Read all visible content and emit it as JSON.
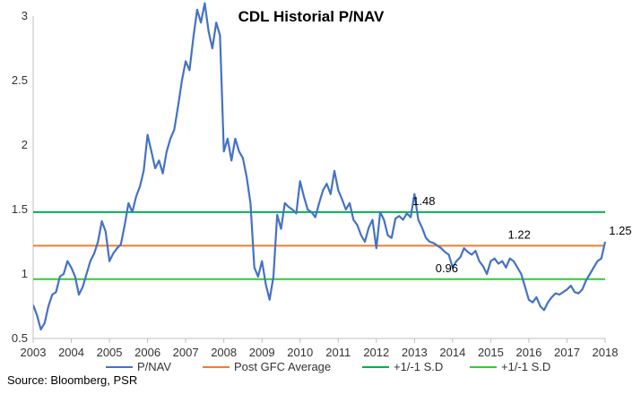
{
  "chart_data": {
    "type": "line",
    "title": "CDL Historial P/NAV",
    "source": "Source: Bloomberg, PSR",
    "ylim": [
      0.5,
      3
    ],
    "yticks": [
      "0.5",
      "1",
      "1.5",
      "2",
      "2.5",
      "3"
    ],
    "ytick_values": [
      0.5,
      1,
      1.5,
      2,
      2.5,
      3
    ],
    "xlim": [
      2003,
      2018
    ],
    "xticks": [
      "2003",
      "2004",
      "2005",
      "2006",
      "2007",
      "2008",
      "2009",
      "2010",
      "2011",
      "2012",
      "2013",
      "2014",
      "2015",
      "2016",
      "2017",
      "2018"
    ],
    "grid": false,
    "legend_position": "bottom",
    "colors": {
      "pnav": "#4472C4",
      "average": "#ED7D31",
      "sd_upper": "#00B050",
      "sd_lower": "#33CC33"
    },
    "series": [
      {
        "name": "P/NAV",
        "key": "pnav",
        "x": [
          2003.0,
          2003.1,
          2003.2,
          2003.3,
          2003.4,
          2003.5,
          2003.6,
          2003.7,
          2003.8,
          2003.9,
          2004.0,
          2004.1,
          2004.2,
          2004.3,
          2004.4,
          2004.5,
          2004.6,
          2004.7,
          2004.8,
          2004.9,
          2005.0,
          2005.1,
          2005.2,
          2005.3,
          2005.4,
          2005.5,
          2005.6,
          2005.7,
          2005.8,
          2005.9,
          2006.0,
          2006.1,
          2006.2,
          2006.3,
          2006.4,
          2006.5,
          2006.6,
          2006.7,
          2006.8,
          2006.9,
          2007.0,
          2007.1,
          2007.2,
          2007.3,
          2007.4,
          2007.5,
          2007.6,
          2007.7,
          2007.8,
          2007.9,
          2008.0,
          2008.1,
          2008.2,
          2008.3,
          2008.4,
          2008.5,
          2008.6,
          2008.7,
          2008.8,
          2008.9,
          2009.0,
          2009.1,
          2009.2,
          2009.3,
          2009.4,
          2009.5,
          2009.6,
          2009.7,
          2009.8,
          2009.9,
          2010.0,
          2010.1,
          2010.2,
          2010.3,
          2010.4,
          2010.5,
          2010.6,
          2010.7,
          2010.8,
          2010.9,
          2011.0,
          2011.1,
          2011.2,
          2011.3,
          2011.4,
          2011.5,
          2011.6,
          2011.7,
          2011.8,
          2011.9,
          2012.0,
          2012.1,
          2012.2,
          2012.3,
          2012.4,
          2012.5,
          2012.6,
          2012.7,
          2012.8,
          2012.9,
          2013.0,
          2013.1,
          2013.2,
          2013.3,
          2013.4,
          2013.5,
          2013.6,
          2013.7,
          2013.8,
          2013.9,
          2014.0,
          2014.1,
          2014.2,
          2014.3,
          2014.4,
          2014.5,
          2014.6,
          2014.7,
          2014.8,
          2014.9,
          2015.0,
          2015.1,
          2015.2,
          2015.3,
          2015.4,
          2015.5,
          2015.6,
          2015.7,
          2015.8,
          2015.9,
          2016.0,
          2016.1,
          2016.2,
          2016.3,
          2016.4,
          2016.5,
          2016.6,
          2016.7,
          2016.8,
          2016.9,
          2017.0,
          2017.1,
          2017.2,
          2017.3,
          2017.4,
          2017.5,
          2017.6,
          2017.7,
          2017.8,
          2017.9,
          2018.0
        ],
        "values": [
          0.76,
          0.68,
          0.57,
          0.62,
          0.75,
          0.84,
          0.86,
          0.98,
          1.0,
          1.1,
          1.05,
          0.98,
          0.84,
          0.9,
          1.0,
          1.1,
          1.16,
          1.25,
          1.41,
          1.33,
          1.1,
          1.16,
          1.2,
          1.23,
          1.38,
          1.55,
          1.48,
          1.6,
          1.68,
          1.8,
          2.08,
          1.95,
          1.82,
          1.88,
          1.78,
          1.95,
          2.05,
          2.12,
          2.3,
          2.5,
          2.65,
          2.58,
          2.83,
          3.05,
          2.95,
          3.1,
          2.88,
          2.75,
          2.95,
          2.85,
          1.95,
          2.05,
          1.88,
          2.05,
          1.95,
          1.9,
          1.75,
          1.55,
          1.05,
          0.98,
          1.1,
          0.92,
          0.8,
          0.98,
          1.46,
          1.35,
          1.55,
          1.52,
          1.5,
          1.47,
          1.72,
          1.6,
          1.5,
          1.48,
          1.44,
          1.55,
          1.65,
          1.7,
          1.62,
          1.8,
          1.65,
          1.58,
          1.5,
          1.55,
          1.42,
          1.38,
          1.3,
          1.25,
          1.36,
          1.42,
          1.2,
          1.48,
          1.42,
          1.3,
          1.28,
          1.43,
          1.45,
          1.42,
          1.47,
          1.44,
          1.62,
          1.42,
          1.36,
          1.28,
          1.25,
          1.24,
          1.22,
          1.2,
          1.17,
          1.15,
          1.05,
          1.1,
          1.13,
          1.2,
          1.17,
          1.15,
          1.18,
          1.1,
          1.06,
          1.0,
          1.1,
          1.12,
          1.08,
          1.1,
          1.05,
          1.12,
          1.1,
          1.05,
          1.0,
          0.9,
          0.8,
          0.78,
          0.82,
          0.75,
          0.72,
          0.78,
          0.82,
          0.85,
          0.84,
          0.86,
          0.88,
          0.91,
          0.86,
          0.85,
          0.88,
          0.95,
          1.0,
          1.05,
          1.1,
          1.12,
          1.25
        ]
      },
      {
        "name": "Post GFC Average",
        "key": "average",
        "constant": 1.22
      },
      {
        "name": "+1/-1 S.D",
        "key": "sd_upper",
        "constant": 1.48
      },
      {
        "name": "+1/-1 S.D",
        "key": "sd_lower",
        "constant": 0.96
      }
    ],
    "annotations": [
      {
        "text": "1.48",
        "x": 2012.95,
        "y": 1.48
      },
      {
        "text": "1.22",
        "x": 2015.45,
        "y": 1.22
      },
      {
        "text": "0.96",
        "x": 2013.55,
        "y": 0.96
      },
      {
        "text": "1.25",
        "x": 2018.1,
        "y": 1.25
      }
    ]
  }
}
